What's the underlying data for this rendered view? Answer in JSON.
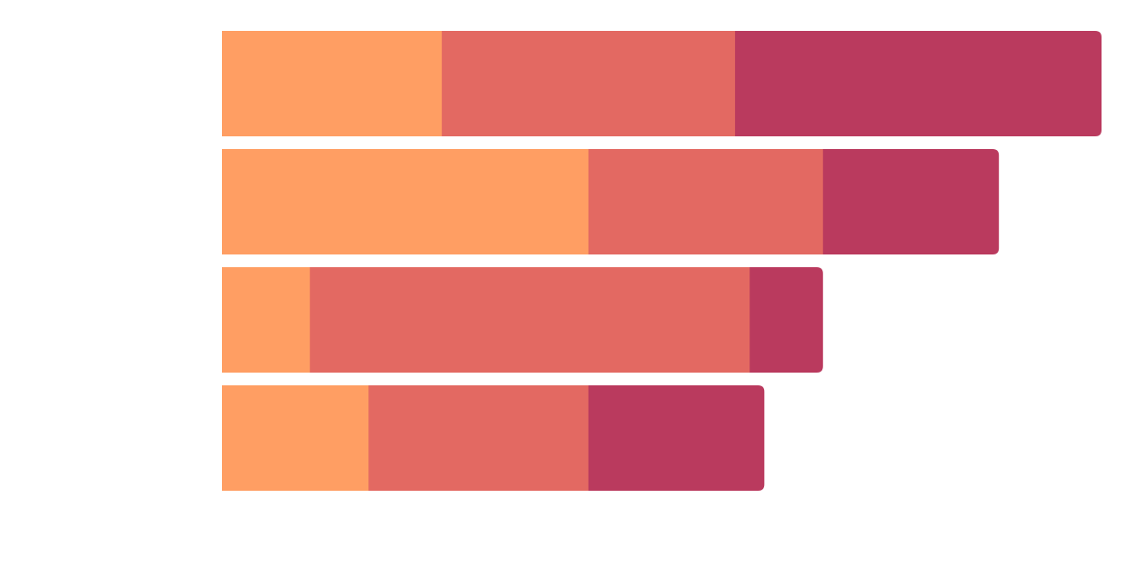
{
  "chart_data": {
    "type": "bar",
    "orientation": "horizontal",
    "stacked": true,
    "categories": [
      "",
      "",
      "",
      ""
    ],
    "series": [
      {
        "values": [
          15,
          25,
          6,
          10
        ]
      },
      {
        "values": [
          20,
          16,
          30,
          15
        ]
      },
      {
        "values": [
          25,
          12,
          5,
          12
        ]
      }
    ],
    "xlim": [
      0,
      60
    ],
    "grid": false,
    "legend": "none",
    "colors": [
      "#FF9E63",
      "#E36962",
      "#BA3A5E"
    ]
  }
}
